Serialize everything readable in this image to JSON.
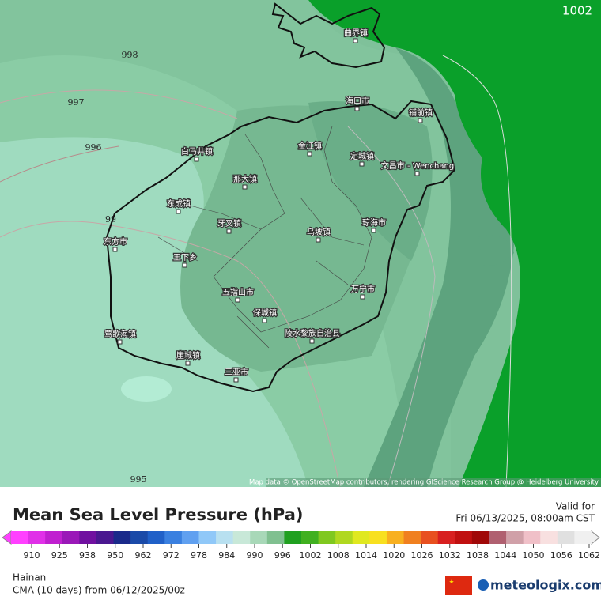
{
  "map": {
    "isobars": [
      1002,
      998,
      997,
      996,
      "99",
      995
    ],
    "places": [
      "曲界镇",
      "海口市",
      "铺前镇",
      "金江镇",
      "定城镇",
      "文昌市 - Wenchang",
      "白马井镇",
      "那大镇",
      "东成镇",
      "牙叉镇",
      "乌坡镇",
      "琼海市",
      "东方市",
      "王下乡",
      "五指山市",
      "万宁市",
      "保城镇",
      "莺歌海镇",
      "陵水黎族自治县",
      "崖城镇",
      "三亚市"
    ],
    "attribution": "Map data © OpenStreetMap contributors, rendering GIScience Research Group @ Heidelberg University"
  },
  "legend": {
    "title": "Mean Sea Level Pressure (hPa)",
    "valid_label": "Valid for",
    "valid_time": "Fri 06/13/2025, 08:00am CST",
    "ticks": [
      910,
      925,
      938,
      950,
      962,
      972,
      978,
      984,
      990,
      996,
      1002,
      1008,
      1014,
      1020,
      1026,
      1032,
      1038,
      1044,
      1050,
      1056,
      1062
    ]
  },
  "footer": {
    "region": "Hainan",
    "model": "CMA (10 days) from 06/12/2025/00z",
    "brand": "meteologix.com"
  }
}
